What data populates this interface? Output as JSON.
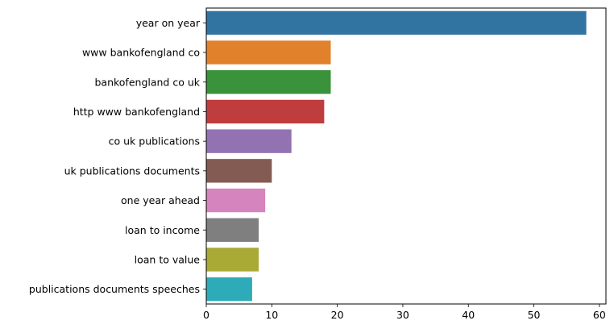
{
  "chart_data": {
    "type": "bar",
    "orientation": "horizontal",
    "categories": [
      "year on year",
      "www bankofengland co",
      "bankofengland co uk",
      "http www bankofengland",
      "co uk publications",
      "uk publications documents",
      "one year ahead",
      "loan to income",
      "loan to value",
      "publications documents speeches"
    ],
    "values": [
      58,
      19,
      19,
      18,
      13,
      10,
      9,
      8,
      8,
      7
    ],
    "colors": [
      "#3274a1",
      "#e1812c",
      "#3a923a",
      "#c03d3e",
      "#9372b2",
      "#845b53",
      "#d684bd",
      "#7f7f7f",
      "#a9aa35",
      "#2eabb8"
    ],
    "xlim": [
      0,
      61
    ],
    "xticks": [
      0,
      10,
      20,
      30,
      40,
      50,
      60
    ],
    "title": "",
    "xlabel": "",
    "ylabel": "",
    "grid": false,
    "legend": "none"
  }
}
